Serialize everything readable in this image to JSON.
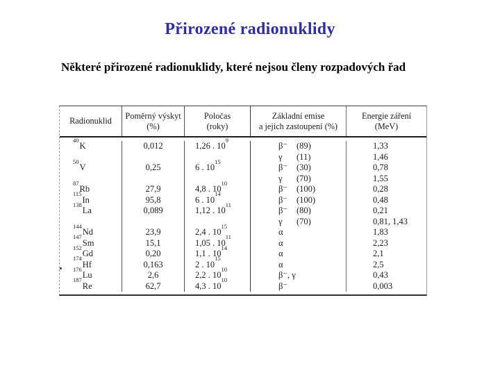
{
  "slide": {
    "title": "Přirozené radionuklidy",
    "subtitle": "Některé přirozené radionuklidy, které nejsou členy rozpadových řad"
  },
  "colors": {
    "title": "#2e2e9e",
    "table_ink": "#1c1c1c"
  },
  "table": {
    "headers": [
      {
        "line1": "Radionuklid",
        "line2": ""
      },
      {
        "line1": "Poměrný výskyt",
        "line2": "(%)"
      },
      {
        "line1": "Poločas",
        "line2": "(roky)"
      },
      {
        "line1": "Základní emise",
        "line2": "a jejich zastoupení (%)"
      },
      {
        "line1": "Energie záření",
        "line2": "(MeV)"
      }
    ],
    "rows": [
      {
        "mass": "40",
        "el": "K",
        "ab": "0,012",
        "hl": "1,26 . 10",
        "exp": "9",
        "em": "β⁻",
        "pct": "(89)",
        "en": "1,33"
      },
      {
        "mass": "",
        "el": "",
        "ab": "",
        "hl": "",
        "exp": "",
        "em": "γ",
        "pct": "(11)",
        "en": "1,46"
      },
      {
        "mass": "50",
        "el": "V",
        "ab": "0,25",
        "hl": "6 . 10",
        "exp": "15",
        "em": "β⁻",
        "pct": "(30)",
        "en": "0,78"
      },
      {
        "mass": "",
        "el": "",
        "ab": "",
        "hl": "",
        "exp": "",
        "em": "γ",
        "pct": "(70)",
        "en": "1,55"
      },
      {
        "mass": "87",
        "el": "Rb",
        "ab": "27,9",
        "hl": "4,8 . 10",
        "exp": "10",
        "em": "β⁻",
        "pct": "(100)",
        "en": "0,28"
      },
      {
        "mass": "115",
        "el": "In",
        "ab": "95,8",
        "hl": "6 . 10",
        "exp": "14",
        "em": "β⁻",
        "pct": "(100)",
        "en": "0,48"
      },
      {
        "mass": "138",
        "el": "La",
        "ab": "0,089",
        "hl": "1,12 . 10",
        "exp": "11",
        "em": "β⁻",
        "pct": "(80)",
        "en": "0,21"
      },
      {
        "mass": "",
        "el": "",
        "ab": "",
        "hl": "",
        "exp": "",
        "em": "γ",
        "pct": "(70)",
        "en": "0,81,  1,43"
      },
      {
        "mass": "144",
        "el": "Nd",
        "ab": "23,9",
        "hl": "2,4 . 10",
        "exp": "15",
        "em": "α",
        "pct": "",
        "en": "1,83"
      },
      {
        "mass": "147",
        "el": "Sm",
        "ab": "15,1",
        "hl": "1,05 . 10",
        "exp": "11",
        "em": "α",
        "pct": "",
        "en": "2,23"
      },
      {
        "mass": "152",
        "el": "Gd",
        "ab": "0,20",
        "hl": "1,1 . 10",
        "exp": "14",
        "em": "α",
        "pct": "",
        "en": "2,1"
      },
      {
        "mass": "174",
        "el": "Hf",
        "ab": "0,163",
        "hl": "2 . 10",
        "exp": "15",
        "em": "α",
        "pct": "",
        "en": "2,5"
      },
      {
        "mass": "176",
        "el": "Lu",
        "ab": "2,6",
        "hl": "2,2 . 10",
        "exp": "10",
        "em": "β⁻, γ",
        "pct": "",
        "en": "0,43"
      },
      {
        "mass": "187",
        "el": "Re",
        "ab": "62,7",
        "hl": "4,3 . 10",
        "exp": "10",
        "em": "β⁻",
        "pct": "",
        "en": "0,003"
      }
    ]
  }
}
